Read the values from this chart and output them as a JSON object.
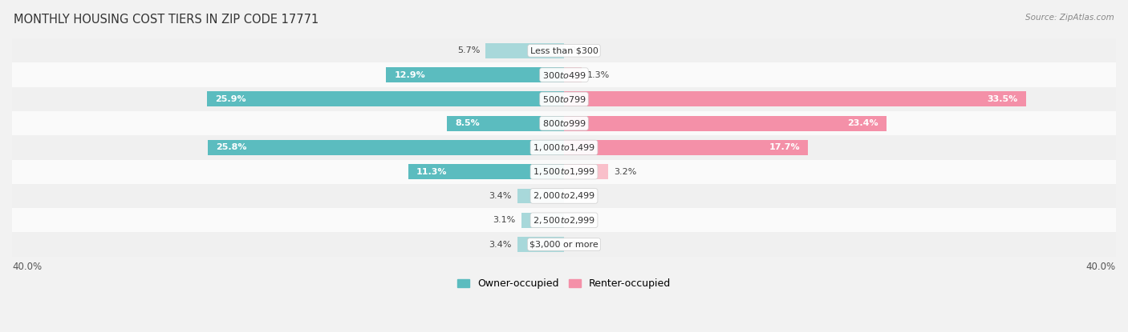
{
  "title": "MONTHLY HOUSING COST TIERS IN ZIP CODE 17771",
  "source": "Source: ZipAtlas.com",
  "categories": [
    "Less than $300",
    "$300 to $499",
    "$500 to $799",
    "$800 to $999",
    "$1,000 to $1,499",
    "$1,500 to $1,999",
    "$2,000 to $2,499",
    "$2,500 to $2,999",
    "$3,000 or more"
  ],
  "owner_values": [
    5.7,
    12.9,
    25.9,
    8.5,
    25.8,
    11.3,
    3.4,
    3.1,
    3.4
  ],
  "renter_values": [
    0.0,
    1.3,
    33.5,
    23.4,
    17.7,
    3.2,
    0.0,
    0.0,
    0.0
  ],
  "owner_color": "#5bbcbf",
  "renter_color": "#f490a8",
  "owner_color_light": "#a8d8da",
  "renter_color_light": "#f9bfca",
  "axis_limit": 40.0,
  "inside_label_threshold": 8.0,
  "title_fontsize": 10.5,
  "bar_label_fontsize": 8.0,
  "cat_label_fontsize": 8.0,
  "legend_fontsize": 9,
  "axis_label_fontsize": 8.5,
  "row_colors": [
    "#f0f0f0",
    "#fafafa"
  ]
}
